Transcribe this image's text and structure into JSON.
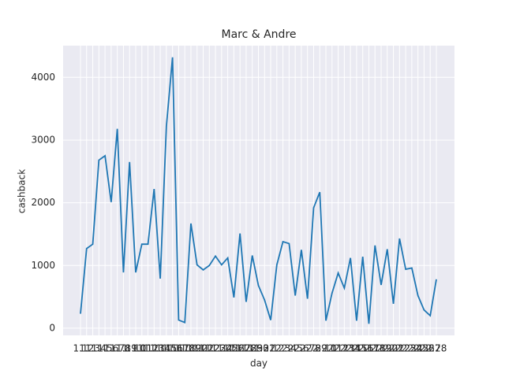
{
  "chart_data": {
    "type": "line",
    "title": "Marc & Andre",
    "x_label": "day",
    "y_label": "cashback",
    "categories": [
      "1.1",
      "1.2",
      "1.3",
      "1.4",
      "1.5",
      "1.6",
      "1.7",
      "1.8",
      "1.9",
      "1.10",
      "1.11",
      "1.12",
      "1.13",
      "1.14",
      "1.15",
      "1.16",
      "1.17",
      "1.18",
      "1.19",
      "1.20",
      "1.21",
      "1.22",
      "1.23",
      "1.24",
      "1.25",
      "1.26",
      "1.27",
      "1.28",
      "1.29",
      "1.30",
      "1.31",
      "2.1",
      "2.2",
      "2.3",
      "2.4",
      "2.5",
      "2.6",
      "2.7",
      "2.8",
      "2.9",
      "2.10",
      "2.11",
      "2.12",
      "2.13",
      "2.14",
      "2.15",
      "2.16",
      "2.17",
      "2.18",
      "2.19",
      "2.20",
      "2.21",
      "2.22",
      "2.23",
      "2.24",
      "2.25",
      "2.26",
      "2.27",
      "2.28"
    ],
    "series": [
      {
        "name": "cashback",
        "color": "#1f77b4",
        "values": [
          230,
          1270,
          1340,
          2680,
          2750,
          2010,
          3180,
          890,
          2650,
          890,
          1340,
          1340,
          2220,
          790,
          3220,
          4320,
          130,
          90,
          1670,
          1010,
          930,
          1000,
          1150,
          1010,
          1120,
          490,
          1510,
          420,
          1160,
          680,
          450,
          130,
          1010,
          1380,
          1350,
          520,
          1250,
          470,
          1920,
          2170,
          120,
          560,
          880,
          640,
          1120,
          120,
          1140,
          70,
          1320,
          690,
          1260,
          390,
          1430,
          940,
          960,
          520,
          290,
          200,
          780
        ]
      }
    ],
    "ylim": [
      -114,
      4506
    ],
    "yticks": [
      0,
      1000,
      2000,
      3000,
      4000
    ],
    "grid": true
  }
}
